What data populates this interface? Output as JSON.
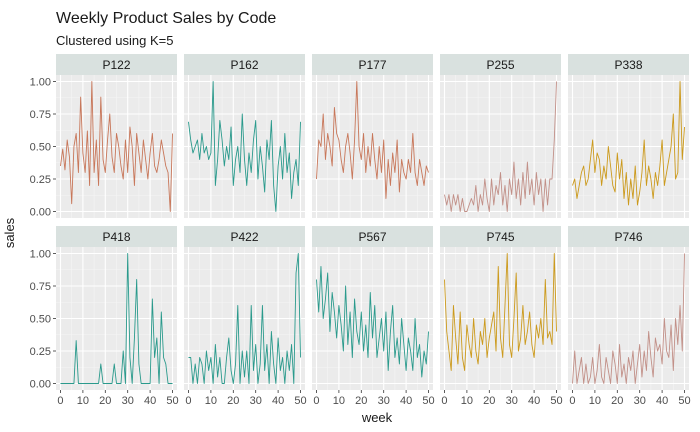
{
  "chart_data": {
    "type": "line",
    "title": "Weekly Product Sales by Code",
    "subtitle": "Clustered using K=5",
    "xlabel": "week",
    "ylabel": "sales",
    "xlim": [
      -2,
      52
    ],
    "ylim": [
      -0.05,
      1.05
    ],
    "x_ticks": [
      0,
      10,
      20,
      30,
      40,
      50
    ],
    "y_ticks": [
      0.0,
      0.25,
      0.5,
      0.75,
      1.0
    ],
    "y_tick_labels": [
      "0.00",
      "0.25",
      "0.50",
      "0.75",
      "1.00"
    ],
    "grid": true,
    "facet_layout": {
      "rows": 2,
      "cols": 5
    },
    "cluster_colors": {
      "salmon": "#c8775a",
      "teal": "#2a9a8c",
      "gold": "#cc9a1c",
      "rose": "#c29088"
    },
    "panels": [
      {
        "label": "P122",
        "color": "#c8775a",
        "values": [
          0.35,
          0.48,
          0.32,
          0.55,
          0.42,
          0.06,
          0.5,
          0.6,
          0.3,
          0.88,
          0.45,
          0.3,
          0.62,
          0.2,
          1.0,
          0.3,
          0.55,
          0.2,
          0.88,
          0.4,
          0.3,
          0.55,
          0.75,
          0.42,
          0.3,
          0.6,
          0.5,
          0.35,
          0.25,
          0.55,
          0.3,
          0.65,
          0.5,
          0.2,
          0.6,
          0.45,
          0.3,
          0.55,
          0.4,
          0.25,
          0.45,
          0.6,
          0.35,
          0.3,
          0.4,
          0.55,
          0.45,
          0.35,
          0.3,
          0.0,
          0.6
        ]
      },
      {
        "label": "P162",
        "color": "#2a9a8c",
        "values": [
          0.69,
          0.55,
          0.45,
          0.5,
          0.55,
          0.4,
          0.6,
          0.45,
          0.5,
          0.4,
          0.45,
          1.0,
          0.2,
          0.4,
          0.7,
          0.55,
          0.35,
          0.5,
          0.4,
          0.65,
          0.2,
          0.4,
          0.5,
          0.3,
          0.75,
          0.4,
          0.2,
          0.45,
          0.3,
          0.55,
          0.7,
          0.25,
          0.5,
          0.35,
          0.15,
          0.55,
          0.4,
          0.7,
          0.2,
          0.0,
          0.35,
          0.5,
          0.25,
          0.6,
          0.3,
          0.45,
          0.1,
          0.3,
          0.4,
          0.2,
          0.69
        ]
      },
      {
        "label": "P177",
        "color": "#c8775a",
        "values": [
          0.25,
          0.55,
          0.5,
          0.75,
          0.4,
          0.6,
          0.5,
          0.35,
          0.8,
          0.6,
          0.55,
          0.4,
          0.3,
          0.5,
          0.6,
          0.45,
          0.25,
          0.55,
          1.0,
          0.5,
          0.4,
          0.6,
          0.3,
          0.5,
          0.35,
          0.6,
          0.4,
          0.25,
          0.5,
          0.3,
          0.55,
          0.1,
          0.4,
          0.2,
          0.45,
          0.3,
          0.55,
          0.15,
          0.4,
          0.3,
          0.25,
          0.4,
          0.3,
          0.6,
          0.3,
          0.2,
          0.4,
          0.3,
          0.2,
          0.35,
          0.3
        ]
      },
      {
        "label": "P255",
        "color": "#c29088",
        "values": [
          0.13,
          0.05,
          0.13,
          0.0,
          0.13,
          0.05,
          0.13,
          0.0,
          0.1,
          0.0,
          0.0,
          0.05,
          0.1,
          0.05,
          0.2,
          0.0,
          0.13,
          0.05,
          0.25,
          0.1,
          0.0,
          0.25,
          0.05,
          0.2,
          0.13,
          0.3,
          0.05,
          0.2,
          0.0,
          0.25,
          0.13,
          0.38,
          0.1,
          0.25,
          0.05,
          0.3,
          0.1,
          0.38,
          0.13,
          0.25,
          0.05,
          0.3,
          0.13,
          0.25,
          0.0,
          0.25,
          0.05,
          0.25,
          0.25,
          0.55,
          1.0
        ]
      },
      {
        "label": "P338",
        "color": "#cc9a1c",
        "values": [
          0.2,
          0.25,
          0.1,
          0.2,
          0.3,
          0.35,
          0.2,
          0.25,
          0.4,
          0.55,
          0.3,
          0.45,
          0.4,
          0.2,
          0.35,
          0.25,
          0.5,
          0.35,
          0.2,
          0.15,
          0.45,
          0.25,
          0.4,
          0.1,
          0.3,
          0.05,
          0.25,
          0.1,
          0.35,
          0.05,
          0.15,
          0.3,
          0.55,
          0.2,
          0.35,
          0.25,
          0.1,
          0.3,
          0.2,
          0.35,
          0.55,
          0.2,
          0.3,
          0.4,
          0.5,
          0.75,
          0.25,
          0.3,
          1.0,
          0.4,
          0.65
        ]
      },
      {
        "label": "P418",
        "color": "#2a9a8c",
        "values": [
          0.0,
          0.0,
          0.0,
          0.0,
          0.0,
          0.0,
          0.0,
          0.33,
          0.0,
          0.0,
          0.0,
          0.0,
          0.0,
          0.0,
          0.0,
          0.0,
          0.0,
          0.0,
          0.15,
          0.0,
          0.0,
          0.0,
          0.0,
          0.0,
          0.15,
          0.0,
          0.0,
          0.0,
          0.25,
          0.0,
          1.0,
          0.2,
          0.0,
          0.35,
          0.8,
          0.15,
          0.0,
          0.0,
          0.0,
          0.0,
          0.0,
          0.65,
          0.2,
          0.35,
          0.0,
          0.55,
          0.2,
          0.15,
          0.0,
          0.0,
          0.0
        ]
      },
      {
        "label": "P422",
        "color": "#2a9a8c",
        "values": [
          0.2,
          0.2,
          0.0,
          0.15,
          0.0,
          0.2,
          0.15,
          0.0,
          0.25,
          0.1,
          0.2,
          0.0,
          0.3,
          0.05,
          0.2,
          0.0,
          0.0,
          0.2,
          0.35,
          0.1,
          0.0,
          0.15,
          0.6,
          0.0,
          0.25,
          0.05,
          0.25,
          0.0,
          0.6,
          0.1,
          0.3,
          0.0,
          0.15,
          0.6,
          0.1,
          0.3,
          0.0,
          0.4,
          0.15,
          0.0,
          0.35,
          0.1,
          0.2,
          0.0,
          0.25,
          0.1,
          0.3,
          0.0,
          0.85,
          1.0,
          0.2
        ]
      },
      {
        "label": "P567",
        "color": "#2a9a8c",
        "values": [
          0.8,
          0.55,
          0.9,
          0.5,
          0.65,
          0.85,
          0.4,
          0.7,
          0.55,
          0.35,
          0.6,
          0.45,
          0.25,
          0.75,
          0.3,
          0.55,
          0.2,
          0.65,
          0.4,
          0.3,
          0.55,
          0.25,
          0.45,
          0.2,
          0.7,
          0.35,
          0.6,
          0.2,
          0.35,
          0.5,
          0.25,
          0.55,
          0.1,
          0.4,
          0.6,
          0.2,
          0.35,
          0.15,
          0.5,
          0.3,
          0.1,
          0.35,
          0.25,
          0.1,
          0.5,
          0.2,
          0.3,
          0.05,
          0.25,
          0.15,
          0.4
        ]
      },
      {
        "label": "P745",
        "color": "#cc9a1c",
        "values": [
          0.8,
          0.4,
          0.25,
          0.1,
          0.6,
          0.35,
          0.15,
          0.55,
          0.2,
          0.1,
          0.45,
          0.3,
          0.2,
          0.5,
          0.25,
          0.15,
          0.4,
          0.3,
          0.5,
          0.2,
          0.35,
          0.45,
          0.55,
          0.25,
          0.9,
          0.35,
          0.2,
          0.6,
          1.0,
          0.3,
          0.2,
          0.5,
          0.85,
          0.25,
          0.35,
          0.6,
          0.3,
          0.4,
          0.55,
          0.3,
          0.2,
          0.45,
          0.35,
          0.5,
          0.3,
          0.8,
          0.35,
          0.4,
          0.3,
          1.0,
          0.4
        ]
      },
      {
        "label": "P746",
        "color": "#c29088",
        "values": [
          0.0,
          0.25,
          0.0,
          0.1,
          0.2,
          0.0,
          0.15,
          0.0,
          0.05,
          0.2,
          0.0,
          0.1,
          0.3,
          0.05,
          0.0,
          0.2,
          0.1,
          0.0,
          0.25,
          0.15,
          0.0,
          0.3,
          0.05,
          0.15,
          0.0,
          0.2,
          0.1,
          0.25,
          0.0,
          0.15,
          0.3,
          0.05,
          0.25,
          0.1,
          0.4,
          0.2,
          0.05,
          0.35,
          0.25,
          0.3,
          0.15,
          0.5,
          0.25,
          0.2,
          0.45,
          0.1,
          0.5,
          0.3,
          0.6,
          0.25,
          1.0
        ]
      }
    ]
  }
}
